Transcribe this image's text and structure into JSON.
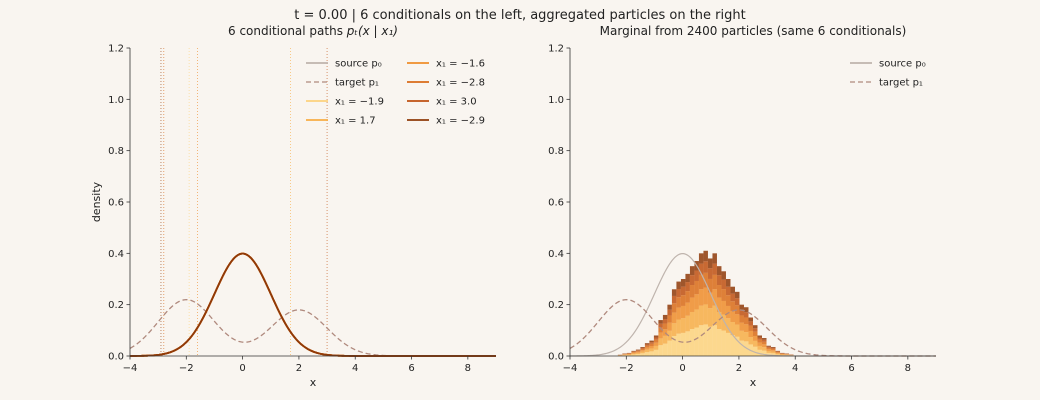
{
  "suptitle": "t = 0.00   |   6 conditionals on the left, aggregated particles on the right",
  "colors": {
    "background": "#f9f5f0",
    "source": "#bfb4ad",
    "target": "#b08a7e",
    "conditionals": [
      "#fdd27d",
      "#f7ad45",
      "#ee8c2a",
      "#d96b18",
      "#bf5012",
      "#8f3a09"
    ]
  },
  "charts": [
    {
      "id": "left",
      "title_pre": "6 conditional paths ",
      "title_math": "pₜ(x | x₁)",
      "xlabel": "x",
      "ylabel": "density",
      "xticks": [
        "−4",
        "−2",
        "0",
        "2",
        "4",
        "6",
        "8"
      ],
      "yticks": [
        "0.0",
        "0.2",
        "0.4",
        "0.6",
        "0.8",
        "1.0",
        "1.2"
      ],
      "legend": [
        {
          "label": "source p₀",
          "style": "solid",
          "color": "#bfb4ad"
        },
        {
          "label": "target p₁",
          "style": "dashed",
          "color": "#b08a7e"
        },
        {
          "label": "x₁ = −1.9",
          "style": "solid",
          "color": "#fdd27d"
        },
        {
          "label": "x₁ = 1.7",
          "style": "solid",
          "color": "#f7ad45"
        },
        {
          "label": "x₁ = −1.6",
          "style": "solid",
          "color": "#ee8c2a"
        },
        {
          "label": "x₁ = −2.8",
          "style": "solid",
          "color": "#d96b18"
        },
        {
          "label": "x₁ = 3.0",
          "style": "solid",
          "color": "#bf5012"
        },
        {
          "label": "x₁ = −2.9",
          "style": "solid",
          "color": "#8f3a09"
        }
      ]
    },
    {
      "id": "right",
      "title": "Marginal from 2400 particles (same 6 conditionals)",
      "xlabel": "x",
      "ylabel": "",
      "xticks": [
        "−4",
        "−2",
        "0",
        "2",
        "4",
        "6",
        "8"
      ],
      "yticks": [
        "0.0",
        "0.2",
        "0.4",
        "0.6",
        "0.8",
        "1.0",
        "1.2"
      ],
      "legend": [
        {
          "label": "source p₀",
          "style": "solid",
          "color": "#bfb4ad"
        },
        {
          "label": "target p₁",
          "style": "dashed",
          "color": "#b08a7e"
        }
      ]
    }
  ],
  "chart_data": [
    {
      "type": "line",
      "panel": "left",
      "xlim": [
        -4,
        9
      ],
      "ylim": [
        0,
        1.2
      ],
      "xtick_values": [
        -4,
        -2,
        0,
        2,
        4,
        6,
        8
      ],
      "ytick_values": [
        0,
        0.2,
        0.4,
        0.6,
        0.8,
        1.0,
        1.2
      ],
      "source": {
        "mean": 0,
        "std": 1
      },
      "target": {
        "components": [
          {
            "weight": 0.55,
            "mean": -2,
            "std": 1
          },
          {
            "weight": 0.45,
            "mean": 2,
            "std": 1
          }
        ]
      },
      "x1_markers": [
        -1.9,
        1.7,
        -1.6,
        -2.8,
        3.0,
        -2.9
      ],
      "series": [
        {
          "name": "x₁ = −1.9",
          "mean": 0,
          "std": 1
        },
        {
          "name": "x₁ = 1.7",
          "mean": 0,
          "std": 1
        },
        {
          "name": "x₁ = −1.6",
          "mean": 0,
          "std": 1
        },
        {
          "name": "x₁ = −2.8",
          "mean": 0,
          "std": 1
        },
        {
          "name": "x₁ = 3.0",
          "mean": 0,
          "std": 1
        },
        {
          "name": "x₁ = −2.9",
          "mean": 0,
          "std": 1
        }
      ],
      "grid": false,
      "legend_position": "top-right"
    },
    {
      "type": "histogram",
      "panel": "right",
      "xlim": [
        -4,
        9
      ],
      "ylim": [
        0,
        1.2
      ],
      "xtick_values": [
        -4,
        -2,
        0,
        2,
        4,
        6,
        8
      ],
      "ytick_values": [
        0,
        0.2,
        0.4,
        0.6,
        0.8,
        1.0,
        1.2
      ],
      "bin_start": -2.3,
      "bin_width": 0.16,
      "stack_fractions": [
        0.3,
        0.19,
        0.16,
        0.14,
        0.11,
        0.1
      ],
      "totals": [
        0.005,
        0.01,
        0.012,
        0.02,
        0.025,
        0.035,
        0.05,
        0.06,
        0.08,
        0.14,
        0.16,
        0.2,
        0.26,
        0.29,
        0.3,
        0.32,
        0.35,
        0.37,
        0.4,
        0.41,
        0.38,
        0.4,
        0.35,
        0.33,
        0.3,
        0.27,
        0.25,
        0.2,
        0.19,
        0.15,
        0.12,
        0.08,
        0.07,
        0.04,
        0.035,
        0.02,
        0.012,
        0.01,
        0.006
      ],
      "grid": false,
      "legend_position": "top-right"
    }
  ]
}
